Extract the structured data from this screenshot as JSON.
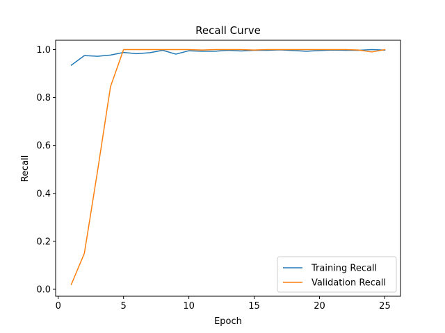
{
  "chart_data": {
    "type": "line",
    "title": "Recall Curve",
    "xlabel": "Epoch",
    "ylabel": "Recall",
    "xlim": [
      -0.2,
      26.2
    ],
    "ylim": [
      -0.029,
      1.039
    ],
    "xticks": [
      0,
      5,
      10,
      15,
      20,
      25
    ],
    "yticks": [
      0.0,
      0.2,
      0.4,
      0.6,
      0.8,
      1.0
    ],
    "grid": false,
    "legend_position": "lower-right",
    "x": [
      1,
      2,
      3,
      4,
      5,
      6,
      7,
      8,
      9,
      10,
      11,
      12,
      13,
      14,
      15,
      16,
      17,
      18,
      19,
      20,
      21,
      22,
      23,
      24,
      25
    ],
    "series": [
      {
        "name": "Training Recall",
        "color": "#1f77b4",
        "values": [
          0.935,
          0.975,
          0.972,
          0.977,
          0.988,
          0.983,
          0.987,
          0.997,
          0.981,
          0.995,
          0.993,
          0.993,
          0.997,
          0.994,
          0.997,
          0.997,
          0.999,
          0.996,
          0.993,
          0.996,
          0.998,
          0.997,
          0.997,
          1.0,
          0.998
        ]
      },
      {
        "name": "Validation Recall",
        "color": "#ff7f0e",
        "values": [
          0.02,
          0.15,
          0.49,
          0.845,
          1.0,
          1.0,
          1.0,
          1.0,
          1.0,
          1.0,
          0.998,
          1.0,
          1.0,
          1.0,
          0.998,
          1.0,
          1.0,
          1.0,
          1.0,
          1.0,
          1.0,
          1.0,
          0.998,
          0.99,
          1.0
        ]
      }
    ]
  }
}
